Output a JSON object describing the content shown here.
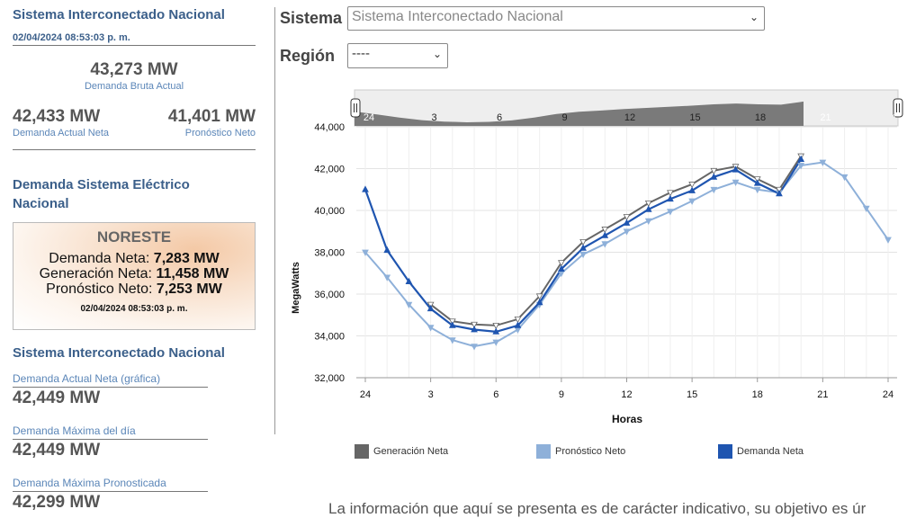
{
  "left": {
    "top_title": "Sistema Interconectado Nacional",
    "top_timestamp": "02/04/2024 08:53:03 p. m.",
    "bruta_value": "43,273 MW",
    "bruta_label": "Demanda Bruta Actual",
    "neta_value": "42,433 MW",
    "neta_label": "Demanda Actual Neta",
    "pron_value": "41,401 MW",
    "pron_label": "Pronóstico Neto",
    "section_title": "Demanda Sistema Eléctrico Nacional",
    "card": {
      "region": "NORESTE",
      "demanda_label": "Demanda Neta:",
      "demanda_value": "7,283 MW",
      "generacion_label": "Generación Neta:",
      "generacion_value": "11,458 MW",
      "pronostico_label": "Pronóstico Neto:",
      "pronostico_value": "7,253 MW",
      "timestamp": "02/04/2024 08:53:03 p. m."
    },
    "sin_title": "Sistema Interconectado Nacional",
    "stats": [
      {
        "label": "Demanda Actual Neta (gráfica)",
        "value": "42,449 MW"
      },
      {
        "label": "Demanda Máxima del día",
        "value": "42,449 MW"
      },
      {
        "label": "Demanda Máxima Pronosticada",
        "value": "42,299 MW"
      }
    ]
  },
  "controls": {
    "sistema_label": "Sistema",
    "sistema_value": "Sistema Interconectado Nacional",
    "region_label": "Región",
    "region_value": "----"
  },
  "chart_data": {
    "type": "line",
    "xlabel": "Horas",
    "ylabel": "MegaWatts",
    "ylim": [
      32000,
      44000
    ],
    "yticks": [
      "32,000",
      "34,000",
      "36,000",
      "38,000",
      "40,000",
      "42,000",
      "44,000"
    ],
    "xticks": [
      "24",
      "3",
      "6",
      "9",
      "12",
      "15",
      "18",
      "21",
      "24"
    ],
    "navigator_ticks": [
      "24",
      "3",
      "6",
      "9",
      "12",
      "15",
      "18",
      "21",
      "24"
    ],
    "x": [
      0,
      1,
      2,
      3,
      4,
      5,
      6,
      7,
      8,
      9,
      10,
      11,
      12,
      13,
      14,
      15,
      16,
      17,
      18,
      19,
      20,
      21,
      22,
      23,
      24
    ],
    "series": [
      {
        "name": "Generación Neta",
        "color": "#666666",
        "values": [
          null,
          null,
          null,
          35500,
          34700,
          34550,
          34500,
          34800,
          35900,
          37500,
          38500,
          39100,
          39700,
          40350,
          40850,
          41250,
          41900,
          42100,
          41500,
          41000,
          42600,
          null,
          null,
          null,
          null
        ]
      },
      {
        "name": "Pronóstico Neto",
        "color": "#8eb0d9",
        "values": [
          38000,
          36800,
          35500,
          34400,
          33800,
          33500,
          33700,
          34300,
          35500,
          37000,
          37900,
          38400,
          39000,
          39500,
          39950,
          40450,
          41000,
          41350,
          41000,
          40850,
          42150,
          42300,
          41600,
          40100,
          38600
        ]
      },
      {
        "name": "Demanda Neta",
        "color": "#1f55b0",
        "values": [
          41000,
          38100,
          36600,
          35300,
          34500,
          34300,
          34200,
          34500,
          35600,
          37200,
          38200,
          38800,
          39400,
          40050,
          40550,
          40950,
          41600,
          41950,
          41300,
          40800,
          42450,
          null,
          null,
          null,
          null
        ]
      }
    ],
    "legend": "bottom"
  },
  "footer_text": "La información que aquí se presenta es de carácter indicativo, su objetivo es úr"
}
